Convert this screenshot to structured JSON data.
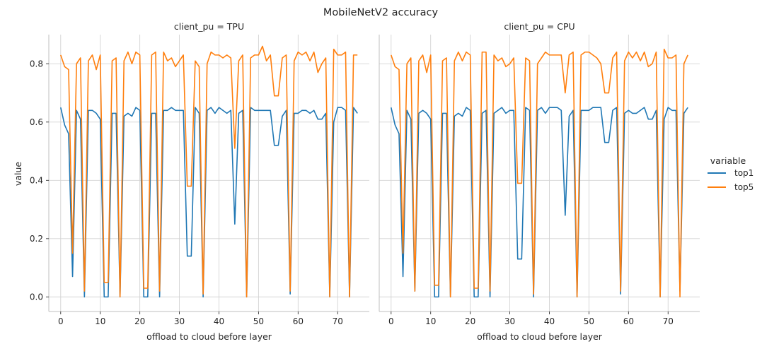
{
  "chart_data": {
    "type": "line",
    "title": "MobileNetV2 accuracy",
    "xlabel": "offload to cloud before layer",
    "ylabel": "value",
    "xlim": [
      -3,
      78
    ],
    "ylim": [
      -0.05,
      0.9
    ],
    "xticks": [
      0,
      10,
      20,
      30,
      40,
      50,
      60,
      70
    ],
    "yticks": [
      0.0,
      0.2,
      0.4,
      0.6,
      0.8
    ],
    "grid": true,
    "legend": {
      "title": "variable",
      "position": "right",
      "entries": [
        {
          "name": "top1",
          "color": "#1f77b4"
        },
        {
          "name": "top5",
          "color": "#ff7f0e"
        }
      ]
    },
    "panels": [
      {
        "title": "client_pu = TPU",
        "x": [
          0,
          1,
          2,
          3,
          4,
          5,
          6,
          7,
          8,
          9,
          10,
          11,
          12,
          13,
          14,
          15,
          16,
          17,
          18,
          19,
          20,
          21,
          22,
          23,
          24,
          25,
          26,
          27,
          28,
          29,
          30,
          31,
          32,
          33,
          34,
          35,
          36,
          37,
          38,
          39,
          40,
          41,
          42,
          43,
          44,
          45,
          46,
          47,
          48,
          49,
          50,
          51,
          52,
          53,
          54,
          55,
          56,
          57,
          58,
          59,
          60,
          61,
          62,
          63,
          64,
          65,
          66,
          67,
          68,
          69,
          70,
          71,
          72,
          73,
          74,
          75
        ],
        "series": [
          {
            "name": "top1",
            "values": [
              0.65,
              0.59,
              0.56,
              0.07,
              0.64,
              0.61,
              0.0,
              0.64,
              0.64,
              0.63,
              0.61,
              0.0,
              0.0,
              0.63,
              0.63,
              0.0,
              0.62,
              0.63,
              0.62,
              0.65,
              0.64,
              0.0,
              0.0,
              0.63,
              0.63,
              0.0,
              0.64,
              0.64,
              0.65,
              0.64,
              0.64,
              0.64,
              0.14,
              0.14,
              0.65,
              0.63,
              0.0,
              0.64,
              0.65,
              0.63,
              0.65,
              0.64,
              0.63,
              0.64,
              0.25,
              0.63,
              0.64,
              0.0,
              0.65,
              0.64,
              0.64,
              0.64,
              0.64,
              0.64,
              0.52,
              0.52,
              0.62,
              0.64,
              0.01,
              0.63,
              0.63,
              0.64,
              0.64,
              0.63,
              0.64,
              0.61,
              0.61,
              0.63,
              0.0,
              0.6,
              0.65,
              0.65,
              0.64,
              0.0,
              0.65,
              0.63
            ]
          },
          {
            "name": "top5",
            "values": [
              0.83,
              0.79,
              0.78,
              0.15,
              0.8,
              0.82,
              0.02,
              0.81,
              0.83,
              0.78,
              0.83,
              0.05,
              0.05,
              0.81,
              0.82,
              0.0,
              0.81,
              0.84,
              0.8,
              0.84,
              0.83,
              0.03,
              0.03,
              0.83,
              0.84,
              0.02,
              0.84,
              0.81,
              0.82,
              0.79,
              0.81,
              0.83,
              0.38,
              0.38,
              0.81,
              0.79,
              0.01,
              0.8,
              0.84,
              0.83,
              0.83,
              0.82,
              0.83,
              0.82,
              0.51,
              0.81,
              0.83,
              0.0,
              0.82,
              0.83,
              0.83,
              0.86,
              0.81,
              0.83,
              0.69,
              0.69,
              0.82,
              0.83,
              0.02,
              0.81,
              0.84,
              0.83,
              0.84,
              0.81,
              0.84,
              0.77,
              0.8,
              0.82,
              0.0,
              0.85,
              0.83,
              0.83,
              0.84,
              0.0,
              0.83,
              0.83
            ]
          }
        ]
      },
      {
        "title": "client_pu = CPU",
        "x": [
          0,
          1,
          2,
          3,
          4,
          5,
          6,
          7,
          8,
          9,
          10,
          11,
          12,
          13,
          14,
          15,
          16,
          17,
          18,
          19,
          20,
          21,
          22,
          23,
          24,
          25,
          26,
          27,
          28,
          29,
          30,
          31,
          32,
          33,
          34,
          35,
          36,
          37,
          38,
          39,
          40,
          41,
          42,
          43,
          44,
          45,
          46,
          47,
          48,
          49,
          50,
          51,
          52,
          53,
          54,
          55,
          56,
          57,
          58,
          59,
          60,
          61,
          62,
          63,
          64,
          65,
          66,
          67,
          68,
          69,
          70,
          71,
          72,
          73,
          74,
          75
        ],
        "series": [
          {
            "name": "top1",
            "values": [
              0.65,
              0.59,
              0.56,
              0.07,
              0.64,
              0.61,
              0.02,
              0.63,
              0.64,
              0.63,
              0.61,
              0.0,
              0.0,
              0.63,
              0.63,
              0.0,
              0.62,
              0.63,
              0.62,
              0.65,
              0.64,
              0.0,
              0.0,
              0.63,
              0.64,
              0.0,
              0.63,
              0.64,
              0.65,
              0.63,
              0.64,
              0.64,
              0.13,
              0.13,
              0.65,
              0.64,
              0.0,
              0.64,
              0.65,
              0.63,
              0.65,
              0.65,
              0.65,
              0.64,
              0.28,
              0.62,
              0.64,
              0.0,
              0.64,
              0.64,
              0.64,
              0.65,
              0.65,
              0.65,
              0.53,
              0.53,
              0.64,
              0.65,
              0.01,
              0.63,
              0.64,
              0.63,
              0.63,
              0.64,
              0.65,
              0.61,
              0.61,
              0.64,
              0.0,
              0.61,
              0.65,
              0.64,
              0.64,
              0.02,
              0.63,
              0.65
            ]
          },
          {
            "name": "top5",
            "values": [
              0.83,
              0.79,
              0.78,
              0.15,
              0.8,
              0.82,
              0.02,
              0.81,
              0.83,
              0.77,
              0.83,
              0.04,
              0.04,
              0.81,
              0.82,
              0.0,
              0.81,
              0.84,
              0.81,
              0.84,
              0.83,
              0.03,
              0.03,
              0.84,
              0.84,
              0.02,
              0.83,
              0.81,
              0.82,
              0.79,
              0.8,
              0.82,
              0.39,
              0.39,
              0.82,
              0.81,
              0.01,
              0.8,
              0.82,
              0.84,
              0.83,
              0.83,
              0.83,
              0.83,
              0.7,
              0.83,
              0.84,
              0.0,
              0.83,
              0.84,
              0.84,
              0.83,
              0.82,
              0.8,
              0.7,
              0.7,
              0.82,
              0.84,
              0.02,
              0.81,
              0.84,
              0.82,
              0.84,
              0.81,
              0.84,
              0.79,
              0.8,
              0.84,
              0.0,
              0.85,
              0.82,
              0.82,
              0.83,
              0.0,
              0.8,
              0.83
            ]
          }
        ]
      }
    ]
  }
}
